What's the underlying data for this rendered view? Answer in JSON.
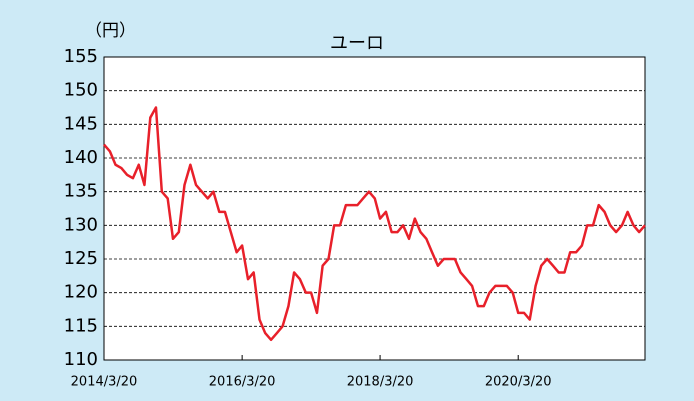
{
  "chart_data": {
    "type": "line",
    "title": "ユーロ",
    "y_unit": "（円）",
    "x": [
      "2014/3/20",
      "2014/4/20",
      "2014/5/20",
      "2014/6/20",
      "2014/7/20",
      "2014/8/20",
      "2014/9/20",
      "2014/10/20",
      "2014/11/20",
      "2014/12/20",
      "2015/1/20",
      "2015/2/20",
      "2015/3/20",
      "2015/4/20",
      "2015/5/20",
      "2015/6/20",
      "2015/7/20",
      "2015/8/20",
      "2015/9/20",
      "2015/10/20",
      "2015/11/20",
      "2015/12/20",
      "2016/1/20",
      "2016/2/20",
      "2016/3/20",
      "2016/4/20",
      "2016/5/20",
      "2016/6/20",
      "2016/7/20",
      "2016/8/20",
      "2016/9/20",
      "2016/10/20",
      "2016/11/20",
      "2016/12/20",
      "2017/1/20",
      "2017/2/20",
      "2017/3/20",
      "2017/4/20",
      "2017/5/20",
      "2017/6/20",
      "2017/7/20",
      "2017/8/20",
      "2017/9/20",
      "2017/10/20",
      "2017/11/20",
      "2017/12/20",
      "2018/1/20",
      "2018/2/20",
      "2018/3/20",
      "2018/4/20",
      "2018/5/20",
      "2018/6/20",
      "2018/7/20",
      "2018/8/20",
      "2018/9/20",
      "2018/10/20",
      "2018/11/20",
      "2018/12/20",
      "2019/1/20",
      "2019/2/20",
      "2019/3/20",
      "2019/4/20",
      "2019/5/20",
      "2019/6/20",
      "2019/7/20",
      "2019/8/20",
      "2019/9/20",
      "2019/10/20",
      "2019/11/20",
      "2019/12/20",
      "2020/1/20",
      "2020/2/20",
      "2020/3/20",
      "2020/4/20",
      "2020/5/20",
      "2020/6/20",
      "2020/7/20",
      "2020/8/20",
      "2020/9/20",
      "2020/10/20",
      "2020/11/20",
      "2020/12/20",
      "2021/1/20",
      "2021/2/20",
      "2021/3/20",
      "2021/4/20",
      "2021/5/20",
      "2021/6/20",
      "2021/7/20",
      "2021/8/20",
      "2021/9/20",
      "2021/10/20",
      "2021/11/20",
      "2021/12/20",
      "2022/1/20"
    ],
    "series": [
      {
        "name": "ユーロ",
        "color": "#e8202a",
        "values": [
          142,
          141,
          139,
          138.5,
          137.5,
          137,
          139,
          136,
          146,
          147.5,
          135,
          134,
          128,
          129,
          136,
          139,
          136,
          135,
          134,
          135,
          132,
          132,
          129,
          126,
          127,
          122,
          123,
          116,
          114,
          113,
          114,
          115,
          118,
          123,
          122,
          120,
          120,
          117,
          124,
          125,
          130,
          130,
          133,
          133,
          133,
          134,
          135,
          134,
          131,
          132,
          129,
          129,
          130,
          128,
          131,
          129,
          128,
          126,
          124,
          125,
          125,
          125,
          123,
          122,
          121,
          118,
          118,
          120,
          121,
          121,
          121,
          120,
          117,
          117,
          116,
          121,
          124,
          125,
          124,
          123,
          123,
          126,
          126,
          127,
          130,
          130,
          133,
          132,
          130,
          129,
          130,
          132,
          130,
          129,
          130
        ]
      }
    ],
    "xlim": [
      "2014/3/20",
      "2022/1/20"
    ],
    "xticks": [
      "2014/3/20",
      "2016/3/20",
      "2018/3/20",
      "2020/3/20"
    ],
    "ylim": [
      110,
      155
    ],
    "yticks": [
      110,
      115,
      120,
      125,
      130,
      135,
      140,
      145,
      150,
      155
    ],
    "grid": true
  }
}
